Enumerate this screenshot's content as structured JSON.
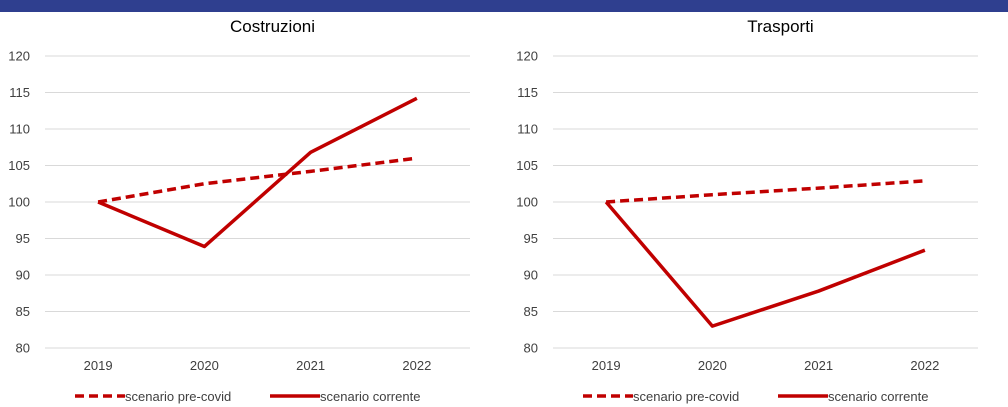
{
  "chart_data": [
    {
      "type": "line",
      "title": "Costruzioni",
      "categories": [
        "2019",
        "2020",
        "2021",
        "2022"
      ],
      "ylim": [
        80,
        120
      ],
      "yticks": [
        80,
        85,
        90,
        95,
        100,
        105,
        110,
        115,
        120
      ],
      "grid": true,
      "legend_position": "bottom",
      "series": [
        {
          "name": "scenario pre-covid",
          "style": "dashed",
          "color": "#c00000",
          "values": [
            100,
            102.5,
            104.2,
            106
          ]
        },
        {
          "name": "scenario corrente",
          "style": "solid",
          "color": "#c00000",
          "values": [
            100,
            93.9,
            106.8,
            114.2
          ]
        }
      ]
    },
    {
      "type": "line",
      "title": "Trasporti",
      "categories": [
        "2019",
        "2020",
        "2021",
        "2022"
      ],
      "ylim": [
        80,
        120
      ],
      "yticks": [
        80,
        85,
        90,
        95,
        100,
        105,
        110,
        115,
        120
      ],
      "grid": true,
      "legend_position": "bottom",
      "series": [
        {
          "name": "scenario pre-covid",
          "style": "dashed",
          "color": "#c00000",
          "values": [
            100,
            101,
            101.9,
            102.9
          ]
        },
        {
          "name": "scenario corrente",
          "style": "solid",
          "color": "#c00000",
          "values": [
            100,
            83,
            87.8,
            93.4
          ]
        }
      ]
    }
  ]
}
